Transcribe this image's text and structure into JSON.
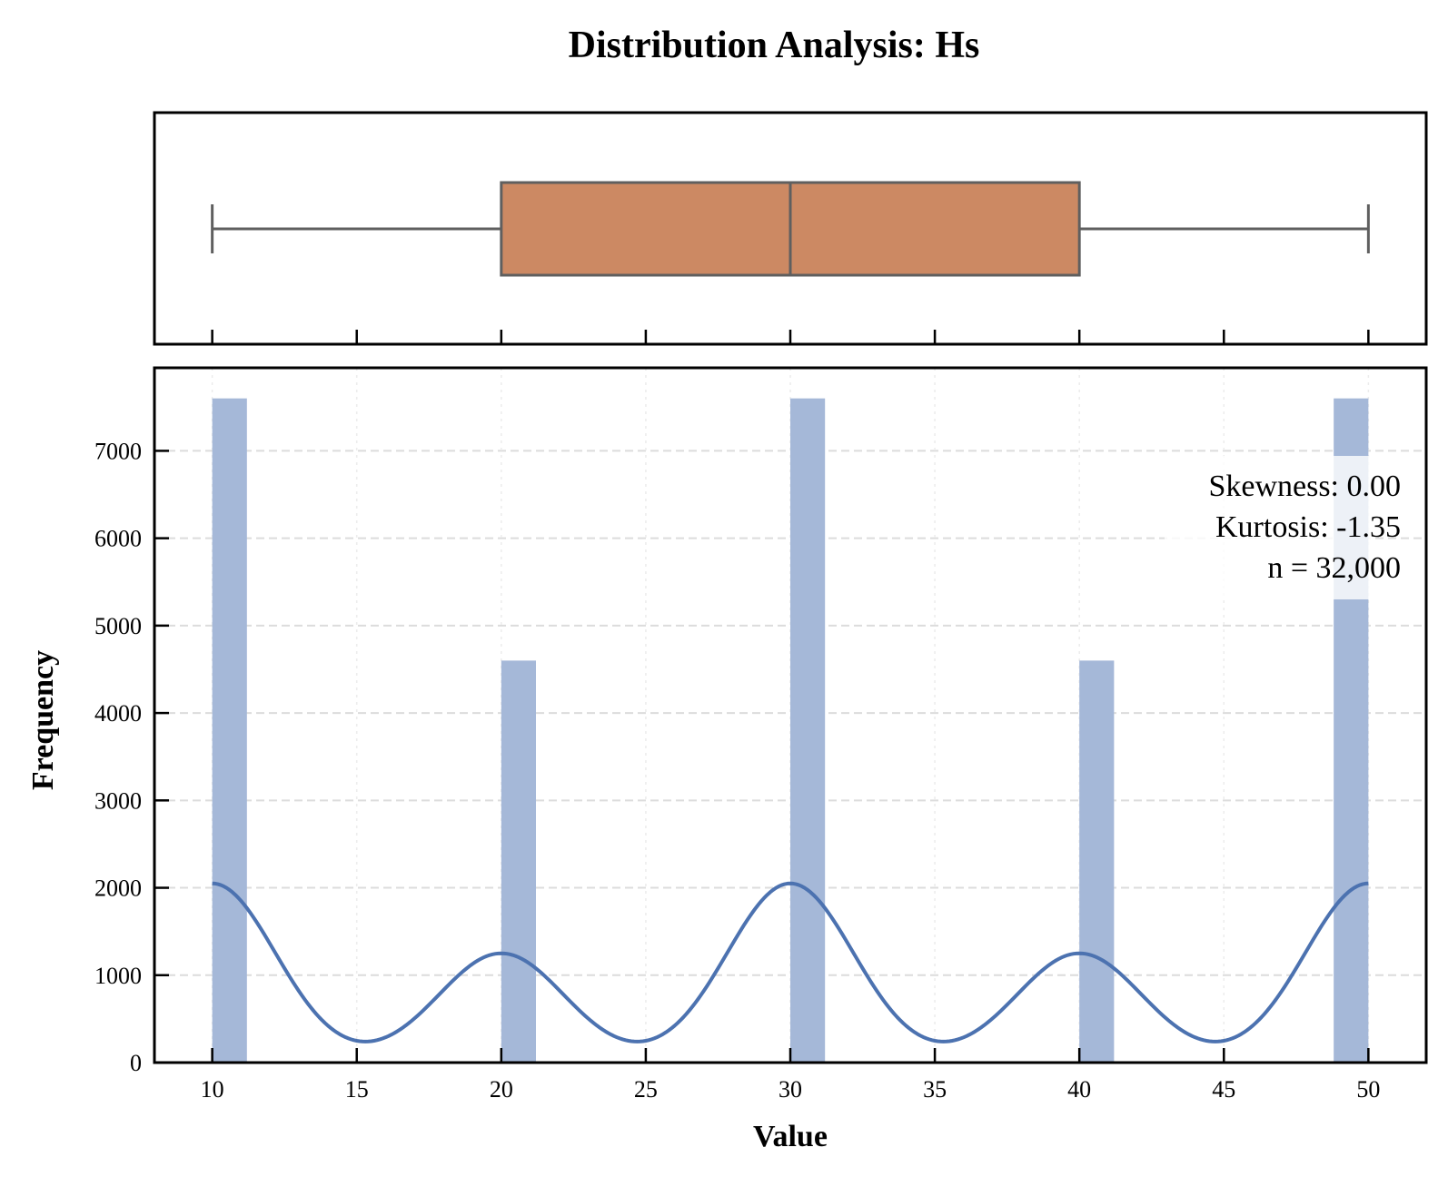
{
  "chart_data": [
    {
      "type": "box",
      "variable": "Hs",
      "min": 10,
      "q1": 20,
      "median": 30,
      "q3": 40,
      "max": 50,
      "xlim": [
        8,
        52
      ],
      "box_color": "#cc8963",
      "line_color": "#5f5f5f",
      "xticks": [
        10,
        15,
        20,
        25,
        30,
        35,
        40,
        45,
        50
      ]
    },
    {
      "type": "histogram",
      "title": "Distribution Analysis: Hs",
      "xlabel": "Value",
      "ylabel": "Frequency",
      "xlim": [
        8,
        52
      ],
      "ylim": [
        0,
        7950
      ],
      "xticks": [
        10,
        15,
        20,
        25,
        30,
        35,
        40,
        45,
        50
      ],
      "yticks": [
        0,
        1000,
        2000,
        3000,
        4000,
        5000,
        6000,
        7000
      ],
      "grid": true,
      "bar_color": "#a5b8d8",
      "bins": [
        {
          "x0": 10.0,
          "x1": 11.2,
          "count": 7600
        },
        {
          "x0": 20.0,
          "x1": 21.2,
          "count": 4600
        },
        {
          "x0": 30.0,
          "x1": 31.2,
          "count": 7600
        },
        {
          "x0": 40.0,
          "x1": 41.2,
          "count": 4600
        },
        {
          "x0": 48.8,
          "x1": 50.0,
          "count": 7600
        }
      ],
      "kde": {
        "color": "#4c72b0",
        "peaks": [
          {
            "x": 10,
            "height": 2050
          },
          {
            "x": 20,
            "height": 1250
          },
          {
            "x": 30,
            "height": 2050
          },
          {
            "x": 40,
            "height": 1250
          },
          {
            "x": 50,
            "height": 2050
          }
        ],
        "spread": 2.2,
        "baseline": 0
      },
      "annotations": [
        "Skewness: 0.00",
        "Kurtosis: -1.35",
        "n = 32,000"
      ]
    }
  ]
}
